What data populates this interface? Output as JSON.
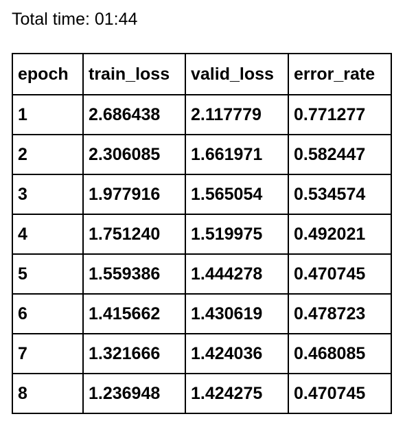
{
  "summary": {
    "total_time_label": "Total time: 01:44"
  },
  "table": {
    "columns": [
      "epoch",
      "train_loss",
      "valid_loss",
      "error_rate"
    ],
    "rows": [
      [
        "1",
        "2.686438",
        "2.117779",
        "0.771277"
      ],
      [
        "2",
        "2.306085",
        "1.661971",
        "0.582447"
      ],
      [
        "3",
        "1.977916",
        "1.565054",
        "0.534574"
      ],
      [
        "4",
        "1.751240",
        "1.519975",
        "0.492021"
      ],
      [
        "5",
        "1.559386",
        "1.444278",
        "0.470745"
      ],
      [
        "6",
        "1.415662",
        "1.430619",
        "0.478723"
      ],
      [
        "7",
        "1.321666",
        "1.424036",
        "0.468085"
      ],
      [
        "8",
        "1.236948",
        "1.424275",
        "0.470745"
      ]
    ]
  }
}
